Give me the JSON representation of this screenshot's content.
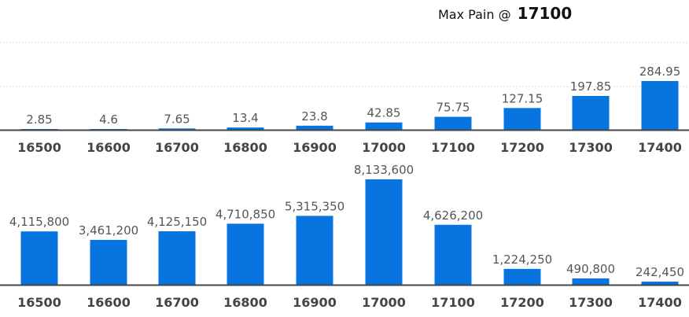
{
  "header": {
    "label": "Max Pain @",
    "value": "17100"
  },
  "colors": {
    "bar": "#0874e0",
    "grid": "#d8d8d8",
    "axis": "#444444",
    "label": "#555555",
    "tick": "#444444"
  },
  "chart_data": [
    {
      "type": "bar",
      "title": "",
      "xlabel": "",
      "ylabel": "",
      "grid": true,
      "categories": [
        "16500",
        "16600",
        "16700",
        "16800",
        "16900",
        "17000",
        "17100",
        "17200",
        "17300",
        "17400"
      ],
      "values": [
        2.85,
        4.6,
        7.65,
        13.4,
        23.8,
        42.85,
        75.75,
        127.15,
        197.85,
        284.95
      ],
      "value_labels": [
        "2.85",
        "4.6",
        "7.65",
        "13.4",
        "23.8",
        "42.85",
        "75.75",
        "127.15",
        "197.85",
        "284.95"
      ],
      "ylim": [
        0,
        284.95
      ]
    },
    {
      "type": "bar",
      "title": "",
      "xlabel": "",
      "ylabel": "",
      "grid": false,
      "categories": [
        "16500",
        "16600",
        "16700",
        "16800",
        "16900",
        "17000",
        "17100",
        "17200",
        "17300",
        "17400"
      ],
      "values": [
        4115800,
        3461200,
        4125150,
        4710850,
        5315350,
        8133600,
        4626200,
        1224250,
        490800,
        242450
      ],
      "value_labels": [
        "4,115,800",
        "3,461,200",
        "4,125,150",
        "4,710,850",
        "5,315,350",
        "8,133,600",
        "4,626,200",
        "1,224,250",
        "490,800",
        "242,450"
      ],
      "ylim": [
        0,
        8133600
      ]
    }
  ]
}
